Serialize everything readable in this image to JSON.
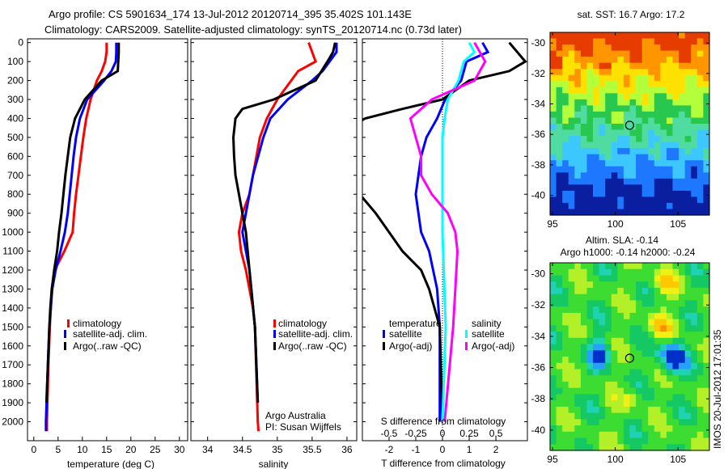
{
  "chart_data": [
    {
      "type": "line",
      "id": "temperature",
      "title": "Argo profile: CS 5901634_174 13-Jul-2012 20120714_395 35.402S 101.143E",
      "subtitle": "Climatology: CARS2009. Satellite-adjusted climatology: synTS_20120714.nc (0.73d later)",
      "xlabel": "temperature (deg C)",
      "ylabel": "depth",
      "xlim": [
        -1.3,
        31.7
      ],
      "ylim": [
        2100,
        -20
      ],
      "xticks": [
        0,
        5,
        10,
        15,
        20,
        25,
        30
      ],
      "yticks": [
        0,
        100,
        200,
        300,
        400,
        500,
        600,
        700,
        800,
        900,
        1000,
        1100,
        1200,
        1300,
        1400,
        1500,
        1600,
        1700,
        1800,
        1900,
        2000
      ],
      "legend": [
        "climatology",
        "satellite-adj. clim.",
        "Argo(..raw -QC)"
      ],
      "series": [
        {
          "name": "climatology",
          "color": "#ff0000",
          "depth": [
            0,
            50,
            100,
            150,
            200,
            300,
            400,
            500,
            600,
            700,
            800,
            900,
            1000,
            1100,
            1200,
            1300,
            1400,
            1500,
            1700,
            2000,
            2050
          ],
          "values": [
            15,
            15,
            14.7,
            14,
            13,
            11.7,
            10.8,
            10.2,
            9.7,
            9.2,
            8.7,
            8.3,
            8,
            6.3,
            4.3,
            3.7,
            3.5,
            3.3,
            3,
            2.7,
            2.7
          ]
        },
        {
          "name": "satellite-adj. clim.",
          "color": "#0000ff",
          "depth": [
            0,
            50,
            100,
            150,
            200,
            300,
            400,
            500,
            600,
            700,
            800,
            900,
            1000,
            1100,
            1200,
            1300,
            1400,
            1500,
            1700,
            2000,
            2050
          ],
          "values": [
            17,
            17,
            16.9,
            16,
            14.5,
            11,
            9.5,
            8.7,
            8.2,
            7.8,
            7.4,
            7,
            6.4,
            5.5,
            4.5,
            3.8,
            3.5,
            3.2,
            2.9,
            2.5,
            2.5
          ]
        },
        {
          "name": "Argo(..raw -QC)",
          "color": "#000000",
          "depth": [
            0,
            50,
            100,
            150,
            200,
            300,
            400,
            500,
            600,
            700,
            800,
            900,
            1000,
            1100,
            1200,
            1300,
            1400,
            1500,
            1700,
            1900
          ],
          "values": [
            17.5,
            17.5,
            17.4,
            17.3,
            14,
            10.5,
            8.5,
            7.5,
            7,
            6.5,
            6.1,
            5.7,
            5.2,
            4.8,
            4.2,
            3.7,
            3.4,
            3.2,
            2.9,
            2.6
          ]
        }
      ]
    },
    {
      "type": "line",
      "id": "salinity",
      "xlabel": "salinity",
      "xlim": [
        33.76,
        36.14
      ],
      "ylim": [
        2100,
        -20
      ],
      "xticks": [
        34,
        34.5,
        35,
        35.5,
        36
      ],
      "legend": [
        "climatology",
        "satellite-adj. clim.",
        "Argo(..raw -QC)"
      ],
      "annotations": [
        "Argo Australia",
        "PI: Susan Wijffels"
      ],
      "series": [
        {
          "name": "climatology",
          "color": "#ff0000",
          "depth": [
            0,
            50,
            100,
            150,
            200,
            300,
            400,
            500,
            600,
            700,
            800,
            900,
            1000,
            1100,
            1200,
            1300,
            1400,
            1500,
            2000,
            2050
          ],
          "values": [
            35.45,
            35.5,
            35.55,
            35.3,
            35.2,
            35,
            34.85,
            34.75,
            34.7,
            34.65,
            34.6,
            34.5,
            34.45,
            34.48,
            34.55,
            34.6,
            34.65,
            34.68,
            34.72,
            34.73
          ]
        },
        {
          "name": "satellite-adj. clim.",
          "color": "#0000ff",
          "depth": [
            0,
            50,
            100,
            150,
            200,
            300,
            400,
            500,
            700,
            900,
            1000,
            1200,
            1500,
            1900
          ],
          "values": [
            35.85,
            35.85,
            35.75,
            35.65,
            35.5,
            35.15,
            34.9,
            34.8,
            34.65,
            34.55,
            34.5,
            34.6,
            34.68,
            34.72
          ]
        },
        {
          "name": "Argo(..raw -QC)",
          "color": "#000000",
          "depth": [
            0,
            50,
            100,
            200,
            300,
            350,
            400,
            500,
            600,
            700,
            800,
            900,
            1000,
            1200,
            1500,
            1900
          ],
          "values": [
            35.83,
            35.8,
            35.72,
            35.55,
            34.95,
            34.5,
            34.4,
            34.37,
            34.38,
            34.4,
            34.45,
            34.5,
            34.55,
            34.6,
            34.68,
            34.72
          ]
        }
      ]
    },
    {
      "type": "line",
      "id": "differences",
      "xlabel": "T difference from climatology",
      "xlabel2": "S difference from climatology",
      "xlim": [
        -3.0,
        3.18
      ],
      "ylim": [
        2100,
        -20
      ],
      "xticks": [
        -2,
        -1,
        0,
        1,
        2
      ],
      "xticks2": [
        -0.5,
        -0.25,
        0,
        0.25,
        0.5
      ],
      "xtick2_labels": [
        "-0.5",
        "-0.25",
        "0",
        "0.25",
        "0.5"
      ],
      "legend_groups": [
        "temperature",
        "salinity"
      ],
      "series": [
        {
          "name": "satellite",
          "group": "temperature",
          "units": "T",
          "color": "#0000ff",
          "depth": [
            0,
            50,
            100,
            200,
            300,
            400,
            500,
            600,
            700,
            800,
            900,
            1000,
            1100,
            1300,
            1500,
            2000
          ],
          "values": [
            1.5,
            1.7,
            0.9,
            0.7,
            0.1,
            -0.2,
            -0.6,
            -0.8,
            -0.9,
            -1.0,
            -0.9,
            -0.8,
            -0.5,
            -0.2,
            -0.1,
            -0.1
          ]
        },
        {
          "name": "Argo(-adj)",
          "group": "temperature",
          "units": "T",
          "color": "#000000",
          "depth": [
            0,
            50,
            100,
            150,
            200,
            300,
            350,
            400,
            450,
            800,
            900,
            1000,
            1100,
            1200,
            1300,
            1400,
            1500,
            2000
          ],
          "values": [
            2.5,
            2.8,
            3.1,
            2.5,
            1.0,
            0,
            -1.5,
            -2.9,
            -3.5,
            -3.1,
            -2.5,
            -2.0,
            -1.5,
            -0.8,
            -0.5,
            -0.3,
            -0.1,
            0
          ]
        },
        {
          "name": "satellite",
          "group": "salinity",
          "units": "S",
          "color": "#00ffff",
          "depth": [
            0,
            50,
            100,
            200,
            300,
            400,
            500,
            700,
            1000,
            1500,
            2000
          ],
          "values": [
            0.25,
            0.3,
            0.2,
            0.15,
            0.05,
            0.02,
            0,
            0,
            0,
            0.03,
            0
          ]
        },
        {
          "name": "Argo(-adj)",
          "group": "salinity",
          "units": "S",
          "color": "#ff00ff",
          "depth": [
            0,
            50,
            100,
            200,
            300,
            400,
            500,
            600,
            700,
            800,
            900,
            1000,
            1100,
            1300,
            1500,
            2000
          ],
          "values": [
            0.3,
            0.35,
            0.4,
            0.3,
            -0.1,
            -0.3,
            -0.25,
            -0.2,
            -0.2,
            -0.1,
            0.05,
            0.12,
            0.14,
            0.12,
            0.1,
            0.02
          ]
        }
      ]
    },
    {
      "type": "heatmap",
      "id": "sst-map",
      "title": "sat. SST: 16.7 Argo: 17.2",
      "xlim": [
        94.8,
        107.5
      ],
      "ylim": [
        -41.3,
        -29.3
      ],
      "xticks": [
        95,
        100,
        105
      ],
      "yticks": [
        -30,
        -32,
        -34,
        -36,
        -38,
        -40
      ],
      "marker": {
        "lon": 101.143,
        "lat": -35.402
      }
    },
    {
      "type": "heatmap",
      "id": "sla-map",
      "title": "Altim. SLA: -0.14",
      "subtitle": "Argo h1000: -0.14 h2000: -0.24",
      "xlim": [
        94.8,
        107.5
      ],
      "ylim": [
        -41.3,
        -29.3
      ],
      "xticks": [
        95,
        100,
        105
      ],
      "yticks": [
        -30,
        -32,
        -34,
        -36,
        -38,
        -40
      ],
      "marker": {
        "lon": 101.143,
        "lat": -35.402
      }
    }
  ],
  "footer": {
    "stamp": "IMOS 20-Jul-2012 17:01:35"
  }
}
